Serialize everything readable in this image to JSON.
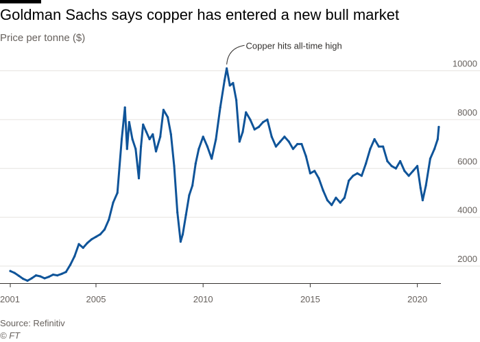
{
  "header": {
    "title": "Goldman Sachs says copper has entered a new bull market",
    "subtitle": "Price per tonne ($)"
  },
  "footer": {
    "source": "Source: Refinitiv",
    "credit": "© FT"
  },
  "colors": {
    "line": "#0f5499",
    "grid": "#e6e3df",
    "axis": "#33302e",
    "tick_text": "#66605c",
    "annotation": "#33302e"
  },
  "chart_data": {
    "type": "line",
    "title": "Goldman Sachs says copper has entered a new bull market",
    "ylabel": "Price per tonne ($)",
    "xlabel": "",
    "xlim": [
      2001,
      2021.1
    ],
    "ylim": [
      1300,
      10800
    ],
    "x_ticks": [
      {
        "value": 2001,
        "label": "2001"
      },
      {
        "value": 2005,
        "label": "2005"
      },
      {
        "value": 2010,
        "label": "2010"
      },
      {
        "value": 2015,
        "label": "2015"
      },
      {
        "value": 2020,
        "label": "2020"
      }
    ],
    "y_ticks": [
      {
        "value": 2000,
        "label": "2000"
      },
      {
        "value": 4000,
        "label": "4000"
      },
      {
        "value": 6000,
        "label": "6000"
      },
      {
        "value": 8000,
        "label": "8000"
      },
      {
        "value": 10000,
        "label": "10000"
      }
    ],
    "y_axis_position": "right",
    "grid": true,
    "annotations": [
      {
        "text": "Copper hits all-time high",
        "x": 2011.1,
        "y": 10148
      }
    ],
    "series": [
      {
        "x": [
          2001.0,
          2001.2,
          2001.4,
          2001.6,
          2001.8,
          2002.0,
          2002.2,
          2002.4,
          2002.6,
          2002.8,
          2003.0,
          2003.2,
          2003.4,
          2003.6,
          2003.8,
          2004.0,
          2004.2,
          2004.4,
          2004.6,
          2004.8,
          2005.0,
          2005.2,
          2005.4,
          2005.6,
          2005.8,
          2006.0,
          2006.2,
          2006.35,
          2006.45,
          2006.55,
          2006.7,
          2006.85,
          2007.0,
          2007.1,
          2007.2,
          2007.35,
          2007.5,
          2007.65,
          2007.8,
          2008.0,
          2008.15,
          2008.35,
          2008.5,
          2008.65,
          2008.8,
          2008.95,
          2009.05,
          2009.2,
          2009.35,
          2009.5,
          2009.65,
          2009.8,
          2010.0,
          2010.2,
          2010.4,
          2010.6,
          2010.8,
          2011.0,
          2011.1,
          2011.25,
          2011.4,
          2011.55,
          2011.7,
          2011.85,
          2012.0,
          2012.2,
          2012.4,
          2012.6,
          2012.8,
          2013.0,
          2013.2,
          2013.4,
          2013.6,
          2013.8,
          2014.0,
          2014.2,
          2014.4,
          2014.6,
          2014.8,
          2015.0,
          2015.2,
          2015.4,
          2015.6,
          2015.8,
          2016.0,
          2016.2,
          2016.4,
          2016.6,
          2016.8,
          2017.0,
          2017.2,
          2017.4,
          2017.6,
          2017.8,
          2018.0,
          2018.2,
          2018.4,
          2018.6,
          2018.8,
          2019.0,
          2019.2,
          2019.4,
          2019.6,
          2019.8,
          2020.0,
          2020.15,
          2020.25,
          2020.4,
          2020.6,
          2020.8,
          2020.95,
          2021.0
        ],
        "values": [
          1800,
          1720,
          1600,
          1480,
          1400,
          1500,
          1620,
          1580,
          1500,
          1560,
          1650,
          1620,
          1680,
          1760,
          2050,
          2400,
          2900,
          2750,
          2950,
          3100,
          3200,
          3300,
          3500,
          3900,
          4600,
          5000,
          7200,
          8500,
          6800,
          7900,
          7200,
          6800,
          5600,
          6900,
          7800,
          7500,
          7200,
          7400,
          6700,
          7300,
          8400,
          8100,
          7400,
          6100,
          4200,
          3000,
          3300,
          4100,
          4900,
          5300,
          6200,
          6800,
          7300,
          6900,
          6400,
          7200,
          8500,
          9600,
          10100,
          9400,
          9500,
          8800,
          7100,
          7500,
          8300,
          8000,
          7600,
          7700,
          7900,
          8000,
          7300,
          6900,
          7100,
          7300,
          7100,
          6800,
          7000,
          7000,
          6500,
          5800,
          5900,
          5600,
          5100,
          4700,
          4500,
          4800,
          4600,
          4800,
          5500,
          5700,
          5800,
          5700,
          6200,
          6800,
          7200,
          6900,
          6900,
          6300,
          6100,
          6000,
          6300,
          5900,
          5700,
          5900,
          6100,
          5200,
          4700,
          5300,
          6400,
          6800,
          7200,
          7700
        ]
      }
    ]
  }
}
